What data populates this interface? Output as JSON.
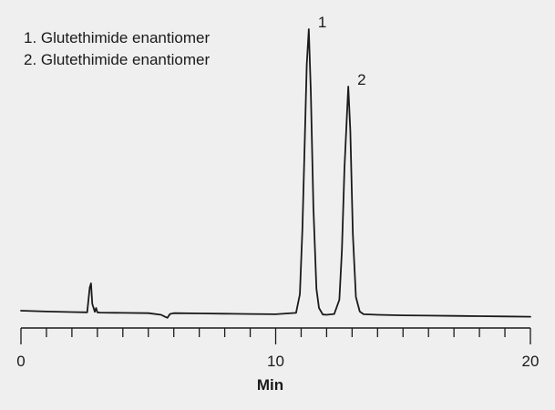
{
  "chart_data": {
    "type": "line",
    "title": "",
    "xlabel": "Min",
    "ylabel": "",
    "xlim": [
      0,
      20
    ],
    "x_major_ticks": [
      0,
      10,
      20
    ],
    "x_minor_tick_step": 1,
    "grid": false,
    "legend_placement": "top-left",
    "legend": [
      "1. Glutethimide enantiomer",
      "2. Glutethimide enantiomer"
    ],
    "baseline": 0.0,
    "series": [
      {
        "color": "#1a1a1a",
        "x": [
          0,
          1,
          2,
          2.6,
          2.7,
          2.75,
          2.8,
          2.9,
          2.95,
          3.0,
          3.1,
          4,
          5,
          5.5,
          5.65,
          5.75,
          5.85,
          6.0,
          7,
          8,
          9,
          10,
          10.8,
          10.95,
          11.05,
          11.15,
          11.22,
          11.3,
          11.38,
          11.48,
          11.6,
          11.7,
          11.85,
          12.0,
          12.3,
          12.5,
          12.6,
          12.7,
          12.78,
          12.85,
          12.93,
          13.03,
          13.15,
          13.3,
          13.45,
          14,
          15,
          16,
          17,
          18,
          19,
          20
        ],
        "y": [
          0.0,
          -0.3,
          -0.5,
          -0.6,
          8.5,
          10.0,
          2.5,
          -0.4,
          1.0,
          -0.6,
          -0.7,
          -0.8,
          -0.9,
          -1.5,
          -2.2,
          -2.6,
          -1.2,
          -0.9,
          -1.0,
          -1.1,
          -1.2,
          -1.3,
          -0.8,
          6.0,
          30.0,
          65.0,
          90.0,
          103.0,
          80.0,
          38.0,
          8.0,
          1.0,
          -1.4,
          -1.5,
          -1.2,
          4.0,
          22.0,
          52.0,
          68.0,
          82.0,
          66.0,
          28.0,
          5.0,
          -0.3,
          -1.3,
          -1.5,
          -1.7,
          -1.8,
          -1.9,
          -2.0,
          -2.1,
          -2.2
        ]
      }
    ],
    "peak_labels": [
      {
        "text": "1",
        "x": 11.3,
        "y": 103.0
      },
      {
        "text": "2",
        "x": 12.85,
        "y": 82.0
      }
    ]
  }
}
